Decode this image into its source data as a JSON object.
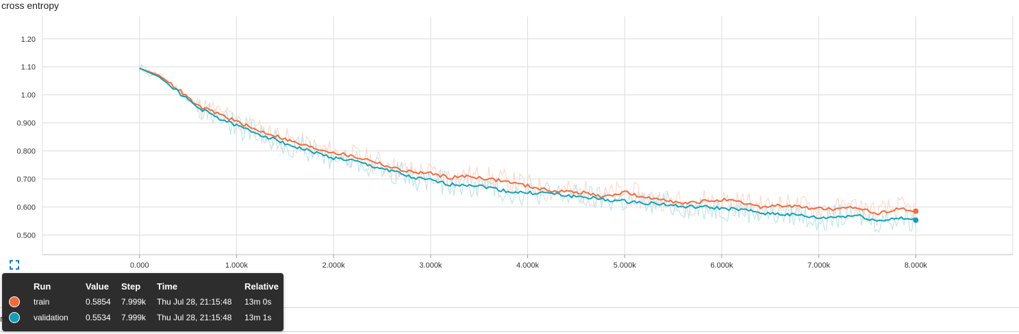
{
  "chart_title": "cross entropy",
  "behind_text": "ma",
  "colors": {
    "train": "#f26b3d",
    "train_raw": "#fcd5c7",
    "validation": "#12a0b6",
    "validation_raw": "#b7e3ea",
    "grid": "#dcdcdc"
  },
  "icons": {
    "fit_domain": "fit-to-data-icon"
  },
  "chart_data": {
    "type": "line",
    "title": "cross entropy",
    "xlabel": "",
    "ylabel": "",
    "xlim": [
      -1000,
      9000
    ],
    "ylim": [
      0.43,
      1.28
    ],
    "x_ticks": [
      0,
      1000,
      2000,
      3000,
      4000,
      5000,
      6000,
      7000,
      8000
    ],
    "x_tick_labels": [
      "0.000",
      "1.000k",
      "2.000k",
      "3.000k",
      "4.000k",
      "5.000k",
      "6.000k",
      "7.000k",
      "8.000k"
    ],
    "y_ticks": [
      0.5,
      0.6,
      0.7,
      0.8,
      0.9,
      1.0,
      1.1,
      1.2
    ],
    "y_tick_labels": [
      "0.500",
      "0.600",
      "0.700",
      "0.800",
      "0.900",
      "1.00",
      "1.10",
      "1.20"
    ],
    "grid": true,
    "series": [
      {
        "name": "train",
        "x": [
          0,
          200,
          400,
          600,
          800,
          1000,
          1200,
          1400,
          1600,
          1800,
          2000,
          2200,
          2400,
          2600,
          2800,
          3000,
          3200,
          3400,
          3600,
          3800,
          4000,
          4200,
          4400,
          4600,
          4800,
          5000,
          5200,
          5400,
          5600,
          5800,
          6000,
          6200,
          6400,
          6600,
          6800,
          7000,
          7200,
          7400,
          7600,
          7800,
          8000
        ],
        "values": [
          1.095,
          1.07,
          1.02,
          0.96,
          0.935,
          0.905,
          0.875,
          0.855,
          0.83,
          0.81,
          0.795,
          0.78,
          0.765,
          0.74,
          0.725,
          0.72,
          0.705,
          0.71,
          0.7,
          0.69,
          0.675,
          0.66,
          0.655,
          0.65,
          0.635,
          0.655,
          0.63,
          0.63,
          0.61,
          0.62,
          0.625,
          0.615,
          0.6,
          0.605,
          0.6,
          0.595,
          0.59,
          0.6,
          0.575,
          0.595,
          0.585
        ]
      },
      {
        "name": "validation",
        "x": [
          0,
          200,
          400,
          600,
          800,
          1000,
          1200,
          1400,
          1600,
          1800,
          2000,
          2200,
          2400,
          2600,
          2800,
          3000,
          3200,
          3400,
          3600,
          3800,
          4000,
          4200,
          4400,
          4600,
          4800,
          5000,
          5200,
          5400,
          5600,
          5800,
          6000,
          6200,
          6400,
          6600,
          6800,
          7000,
          7200,
          7400,
          7600,
          7800,
          8000
        ],
        "values": [
          1.095,
          1.065,
          1.01,
          0.955,
          0.92,
          0.89,
          0.865,
          0.84,
          0.815,
          0.795,
          0.775,
          0.765,
          0.745,
          0.73,
          0.705,
          0.695,
          0.68,
          0.68,
          0.67,
          0.655,
          0.65,
          0.65,
          0.64,
          0.635,
          0.625,
          0.62,
          0.615,
          0.61,
          0.6,
          0.6,
          0.595,
          0.59,
          0.58,
          0.575,
          0.57,
          0.56,
          0.565,
          0.57,
          0.55,
          0.56,
          0.553
        ]
      }
    ],
    "markers": [
      {
        "series": "train",
        "x": 8000,
        "value": 0.585
      },
      {
        "series": "validation",
        "x": 8000,
        "value": 0.553
      }
    ]
  },
  "tooltip": {
    "headers": {
      "run": "Run",
      "value": "Value",
      "step": "Step",
      "time": "Time",
      "relative": "Relative"
    },
    "rows": [
      {
        "swatch_color": "#f26b3d",
        "run": "train",
        "value": "0.5854",
        "step": "7.999k",
        "time": "Thu Jul 28, 21:15:48",
        "relative": "13m 0s"
      },
      {
        "swatch_color": "#12a0b6",
        "run": "validation",
        "value": "0.5534",
        "step": "7.999k",
        "time": "Thu Jul 28, 21:15:48",
        "relative": "13m 1s"
      }
    ]
  }
}
